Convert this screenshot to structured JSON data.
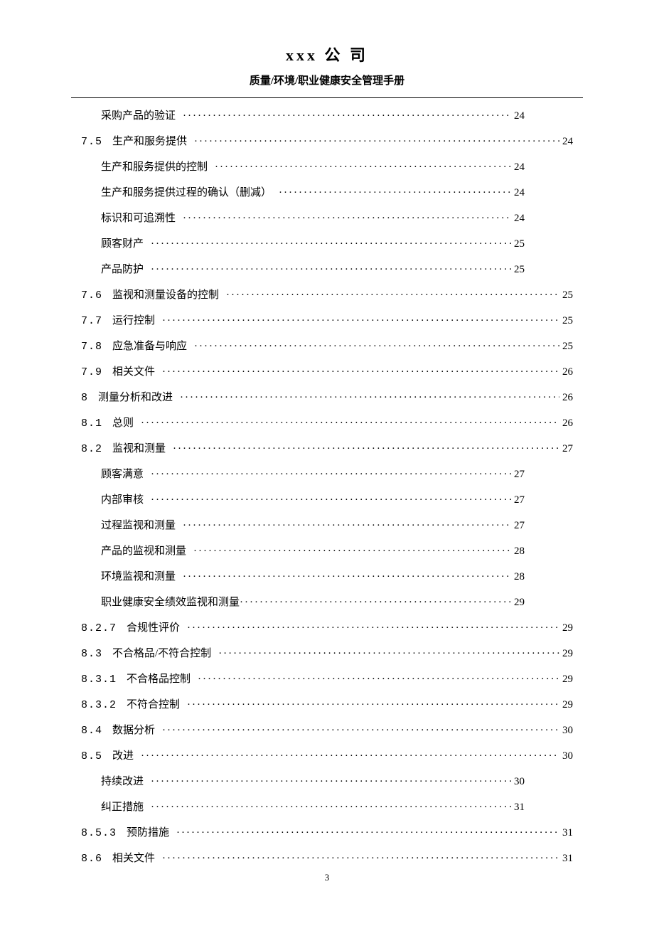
{
  "header": {
    "company": "xxx 公 司",
    "subtitle": "质量/环境/职业健康安全管理手册"
  },
  "toc": [
    {
      "number": "",
      "title": "采购产品的验证",
      "page": "24",
      "indent": 2,
      "dotsWidth": 596
    },
    {
      "number": "7.5",
      "title": "生产和服务提供",
      "page": "24",
      "indent": 1,
      "dotsWidth": 700
    },
    {
      "number": "",
      "title": "生产和服务提供的控制",
      "page": "24",
      "indent": 2,
      "dotsWidth": 596
    },
    {
      "number": "",
      "title": "生产和服务提供过程的确认（删减）",
      "page": "24",
      "indent": 2,
      "dotsWidth": 596
    },
    {
      "number": "",
      "title": "标识和可追溯性",
      "page": "24",
      "indent": 2,
      "dotsWidth": 596
    },
    {
      "number": "",
      "title": "顾客财产",
      "page": "25",
      "indent": 2,
      "dotsWidth": 596
    },
    {
      "number": "",
      "title": "产品防护",
      "page": "25",
      "indent": 2,
      "dotsWidth": 596
    },
    {
      "number": "7.6",
      "title": "监视和测量设备的控制",
      "page": "25",
      "indent": 1,
      "dotsWidth": 700
    },
    {
      "number": "7.7",
      "title": "运行控制",
      "page": "25",
      "indent": 1,
      "dotsWidth": 700
    },
    {
      "number": "7.8",
      "title": "应急准备与响应",
      "page": "25",
      "indent": 1,
      "dotsWidth": 700
    },
    {
      "number": "7.9",
      "title": "相关文件",
      "page": "26",
      "indent": 1,
      "dotsWidth": 700
    },
    {
      "number": "8",
      "title": "测量分析和改进",
      "page": "26",
      "indent": 1,
      "dotsWidth": 700
    },
    {
      "number": "8.1",
      "title": "总则",
      "page": "26",
      "indent": 1,
      "dotsWidth": 700
    },
    {
      "number": "8.2",
      "title": "监视和测量",
      "page": "27",
      "indent": 1,
      "dotsWidth": 700
    },
    {
      "number": "",
      "title": "顾客满意",
      "page": "27",
      "indent": 2,
      "dotsWidth": 596
    },
    {
      "number": "",
      "title": "内部审核",
      "page": "27",
      "indent": 2,
      "dotsWidth": 596
    },
    {
      "number": "",
      "title": "过程监视和测量",
      "page": "27",
      "indent": 2,
      "dotsWidth": 596
    },
    {
      "number": "",
      "title": "产品的监视和测量",
      "page": "28",
      "indent": 2,
      "dotsWidth": 596
    },
    {
      "number": "",
      "title": "环境监视和测量",
      "page": "28",
      "indent": 2,
      "dotsWidth": 596
    },
    {
      "number": "",
      "title": "职业健康安全绩效监视和测量",
      "page": "29",
      "indent": 2,
      "dotsWidth": 596,
      "noDotMargin": true
    },
    {
      "number": "8.2.7",
      "title": "合规性评价",
      "page": "29",
      "indent": 1,
      "dotsWidth": 700
    },
    {
      "number": "8.3",
      "title": "不合格品/不符合控制",
      "page": "29",
      "indent": 1,
      "dotsWidth": 700
    },
    {
      "number": "8.3.1",
      "title": "不合格品控制",
      "page": "29",
      "indent": 1,
      "dotsWidth": 700
    },
    {
      "number": "8.3.2",
      "title": "不符合控制",
      "page": "29",
      "indent": 1,
      "dotsWidth": 700
    },
    {
      "number": "8.4",
      "title": "数据分析",
      "page": "30",
      "indent": 1,
      "dotsWidth": 700
    },
    {
      "number": "8.5",
      "title": "改进",
      "page": "30",
      "indent": 1,
      "dotsWidth": 700
    },
    {
      "number": "",
      "title": "持续改进",
      "page": "30",
      "indent": 2,
      "dotsWidth": 596
    },
    {
      "number": "",
      "title": "纠正措施",
      "page": "31",
      "indent": 2,
      "dotsWidth": 596
    },
    {
      "number": "8.5.3",
      "title": "预防措施",
      "page": "31",
      "indent": 1,
      "dotsWidth": 700
    },
    {
      "number": "8.6",
      "title": "相关文件",
      "page": "31",
      "indent": 1,
      "dotsWidth": 700
    }
  ],
  "footer": {
    "pageNumber": "3"
  },
  "styling": {
    "background_color": "#ffffff",
    "text_color": "#000000",
    "company_fontsize": 22,
    "subtitle_fontsize": 15,
    "toc_fontsize": 15,
    "line_spacing": 21,
    "dot_char": "·",
    "header_line_weight": 1.5
  }
}
